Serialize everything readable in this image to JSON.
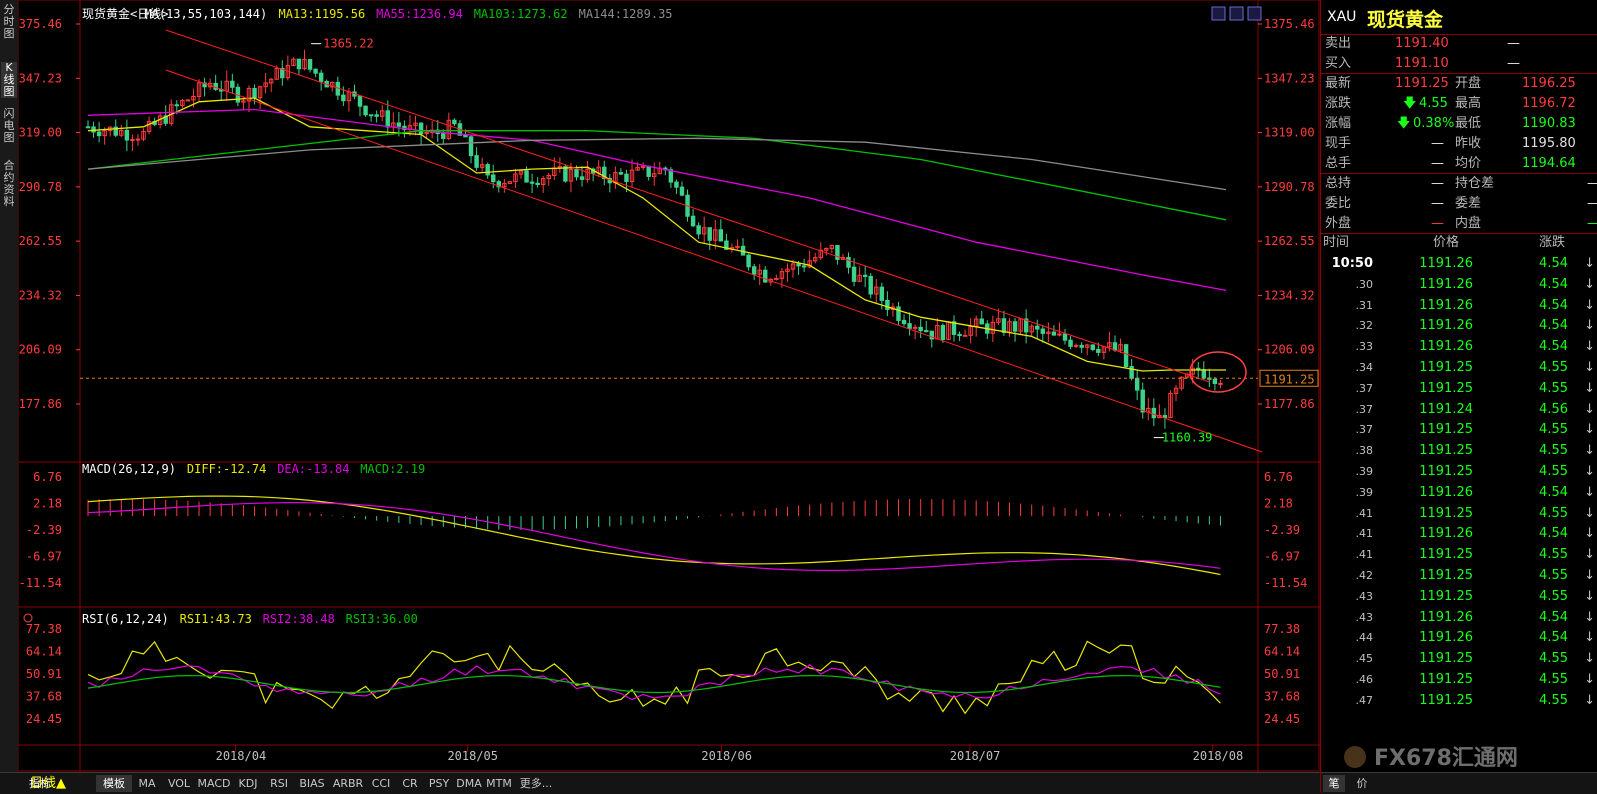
{
  "left_tabs": [
    "分时图",
    "K线图",
    "闪电图",
    "合约资料"
  ],
  "chart_header": {
    "name": "现货黄金<日线>",
    "ma": "MA(13,55,103,144)",
    "ma13": "MA13:1195.56",
    "ma55": "MA55:1236.94",
    "ma103": "MA103:1273.62",
    "ma144": "MA144:1289.35",
    "macd": "MACD(26,12,9)",
    "diff": "DIFF:-12.74",
    "dea": "DEA:-13.84",
    "macdv": "MACD:2.19",
    "rsi": "RSI(6,12,24)",
    "rsi1": "RSI1:43.73",
    "rsi2": "RSI2:38.48",
    "rsi3": "RSI3:36.00"
  },
  "price_axis": [
    "1375.46",
    "1347.23",
    "1319.00",
    "1290.78",
    "1262.55",
    "1234.32",
    "1206.09",
    "1177.86"
  ],
  "macd_axis": [
    "6.76",
    "2.18",
    "-2.39",
    "-6.97",
    "-11.54"
  ],
  "rsi_axis": [
    "77.38",
    "64.14",
    "50.91",
    "37.68",
    "24.45"
  ],
  "time_axis": [
    "2018/04",
    "2018/05",
    "2018/06",
    "2018/07",
    "2018/08"
  ],
  "annotations": {
    "high": "1365.22",
    "low": "1160.39",
    "last": "1191.25"
  },
  "bottom_tabs": {
    "period": "日线▲",
    "items": [
      "指标",
      "模板",
      "MA",
      "VOL",
      "MACD",
      "KDJ",
      "RSI",
      "BIAS",
      "ARBR",
      "CCI",
      "CR",
      "PSY",
      "DMA",
      "MTM",
      "更多..."
    ]
  },
  "quote": {
    "code": "XAU",
    "name": "现货黄金",
    "sell_label": "卖出",
    "sell": "1191.40",
    "sell_vol": "—",
    "buy_label": "买入",
    "buy": "1191.10",
    "buy_vol": "—",
    "last_label": "最新",
    "last": "1191.25",
    "open_label": "开盘",
    "open": "1196.25",
    "chg_label": "涨跌",
    "chg": "4.55",
    "high_label": "最高",
    "high": "1196.72",
    "pct_label": "涨幅",
    "pct": "0.38%",
    "low_label": "最低",
    "low": "1190.83",
    "hand_label": "现手",
    "hand": "—",
    "prev_label": "昨收",
    "prev": "1195.80",
    "total_label": "总手",
    "total": "—",
    "avg_label": "均价",
    "avg": "1194.64",
    "pos_label": "总持",
    "pos": "—",
    "poschg_label": "持仓差",
    "poschg": "—",
    "ratio_label": "委比",
    "ratio": "—",
    "diff_label": "委差",
    "diffv": "—",
    "outer_label": "外盘",
    "outer": "—",
    "inner_label": "内盘",
    "inner": "—"
  },
  "ticks_header": {
    "time": "时间",
    "price": "价格",
    "chg": "涨跌"
  },
  "ticks": [
    {
      "t": "10:50",
      "p": "1191.26",
      "c": "4.54"
    },
    {
      "t": ".30",
      "p": "1191.26",
      "c": "4.54"
    },
    {
      "t": ".31",
      "p": "1191.26",
      "c": "4.54"
    },
    {
      "t": ".32",
      "p": "1191.26",
      "c": "4.54"
    },
    {
      "t": ".33",
      "p": "1191.26",
      "c": "4.54"
    },
    {
      "t": ".34",
      "p": "1191.25",
      "c": "4.55"
    },
    {
      "t": ".37",
      "p": "1191.25",
      "c": "4.55"
    },
    {
      "t": ".37",
      "p": "1191.24",
      "c": "4.56"
    },
    {
      "t": ".37",
      "p": "1191.25",
      "c": "4.55"
    },
    {
      "t": ".38",
      "p": "1191.25",
      "c": "4.55"
    },
    {
      "t": ".39",
      "p": "1191.25",
      "c": "4.55"
    },
    {
      "t": ".39",
      "p": "1191.26",
      "c": "4.54"
    },
    {
      "t": ".41",
      "p": "1191.25",
      "c": "4.55"
    },
    {
      "t": ".41",
      "p": "1191.26",
      "c": "4.54"
    },
    {
      "t": ".41",
      "p": "1191.25",
      "c": "4.55"
    },
    {
      "t": ".42",
      "p": "1191.25",
      "c": "4.55"
    },
    {
      "t": ".43",
      "p": "1191.25",
      "c": "4.55"
    },
    {
      "t": ".43",
      "p": "1191.26",
      "c": "4.54"
    },
    {
      "t": ".44",
      "p": "1191.26",
      "c": "4.54"
    },
    {
      "t": ".45",
      "p": "1191.25",
      "c": "4.55"
    },
    {
      "t": ".46",
      "p": "1191.25",
      "c": "4.55"
    },
    {
      "t": ".47",
      "p": "1191.25",
      "c": "4.55"
    }
  ],
  "rp_bottom": [
    "笔",
    "价"
  ],
  "watermark": "FX678汇通网",
  "colors": {
    "up": "#ff3c3c",
    "down": "#3cd28c",
    "ma13": "#e8e800",
    "ma55": "#e000e0",
    "ma103": "#00c000",
    "ma144": "#8c8c8c",
    "frame": "#8a0000"
  },
  "chart_data": {
    "type": "candlestick",
    "ylim": [
      1160,
      1380
    ],
    "series": [
      {
        "name": "MA13",
        "x": [
          0,
          10,
          20,
          30,
          40,
          50,
          60,
          70,
          80,
          90,
          100,
          110,
          120,
          130,
          140,
          150,
          160,
          170,
          180,
          190,
          195,
          200,
          205
        ],
        "values": [
          1320,
          1322,
          1335,
          1337,
          1322,
          1320,
          1318,
          1298,
          1300,
          1301,
          1285,
          1262,
          1256,
          1250,
          1232,
          1223,
          1218,
          1213,
          1200,
          1195,
          1195.56,
          1195.56,
          1195.56
        ]
      },
      {
        "name": "MA55",
        "x": [
          0,
          30,
          60,
          80,
          100,
          130,
          160,
          190,
          205
        ],
        "values": [
          1328,
          1331,
          1320,
          1315,
          1302,
          1285,
          1262,
          1245,
          1236.94
        ]
      },
      {
        "name": "MA103",
        "x": [
          0,
          30,
          60,
          90,
          120,
          150,
          180,
          205
        ],
        "values": [
          1300,
          1310,
          1320,
          1320,
          1316,
          1305,
          1288,
          1273.62
        ]
      },
      {
        "name": "MA144",
        "x": [
          0,
          40,
          80,
          110,
          140,
          170,
          205
        ],
        "values": [
          1300,
          1310,
          1315,
          1316,
          1314,
          1305,
          1289.35
        ]
      }
    ]
  }
}
